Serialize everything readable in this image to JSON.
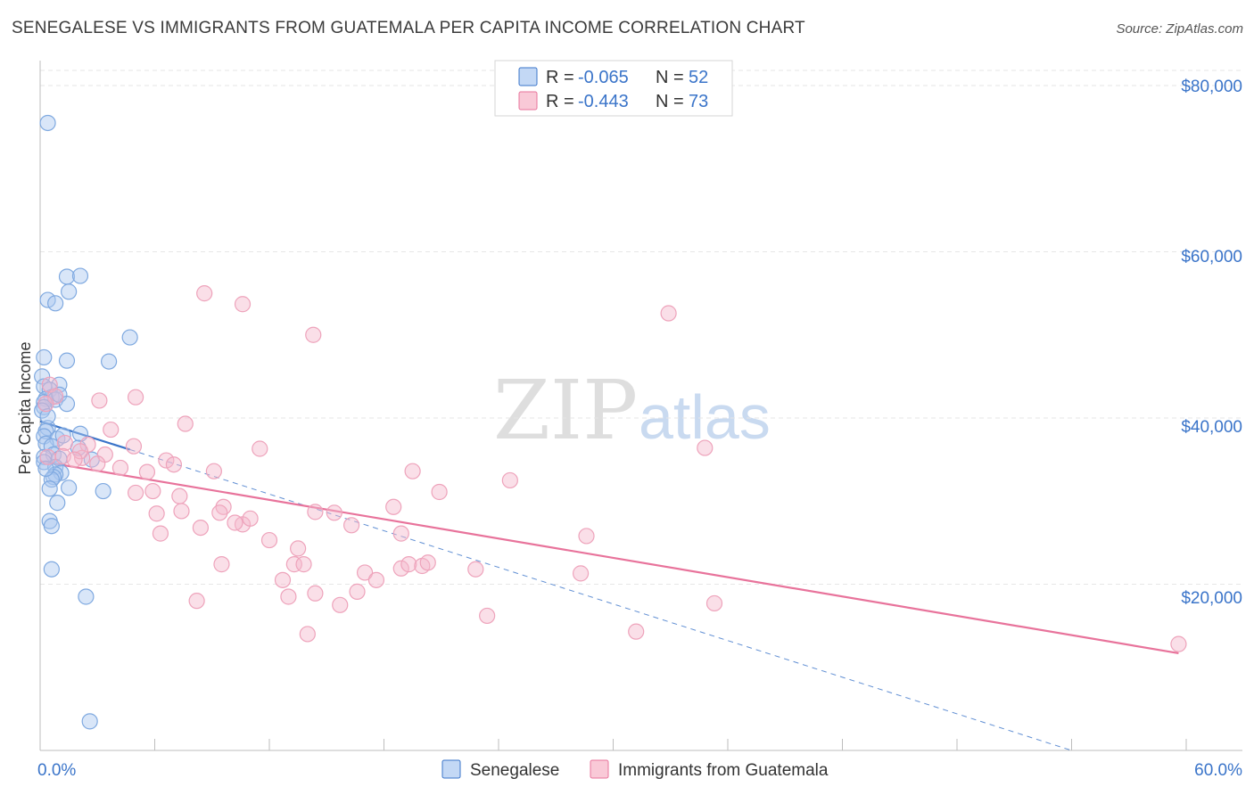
{
  "title": "SENEGALESE VS IMMIGRANTS FROM GUATEMALA PER CAPITA INCOME CORRELATION CHART",
  "source": "Source: ZipAtlas.com",
  "watermark": {
    "part1": "ZIP",
    "part2": "atlas"
  },
  "colors": {
    "blue": "#3a74c9",
    "blue_fill": "#aac8f0",
    "pink": "#e8739b",
    "pink_fill": "#f5b8cb"
  },
  "legend": {
    "rows": [
      {
        "r_label": "R =",
        "r_value": "-0.065",
        "n_label": "N =",
        "n_value": "52"
      },
      {
        "r_label": "R =",
        "r_value": "-0.443",
        "n_label": "N =",
        "n_value": "73"
      }
    ]
  },
  "bottom_legend": [
    "Senegalese",
    "Immigrants from Guatemala"
  ],
  "chart_data": {
    "type": "scatter",
    "title": "SENEGALESE VS IMMIGRANTS FROM GUATEMALA PER CAPITA INCOME CORRELATION CHART",
    "xlabel": "",
    "ylabel": "Per Capita Income",
    "xlim": [
      0,
      60
    ],
    "ylim": [
      0,
      83000
    ],
    "x_tick_labels": [
      "0.0%",
      "60.0%"
    ],
    "y_ticks": [
      20000,
      40000,
      60000,
      80000
    ],
    "y_tick_labels": [
      "$20,000",
      "$40,000",
      "$60,000",
      "$80,000"
    ],
    "series": [
      {
        "name": "Senegalese",
        "color": "#3a74c9",
        "points": [
          [
            0.4,
            75500
          ],
          [
            0.4,
            54200
          ],
          [
            0.8,
            53800
          ],
          [
            1.4,
            57000
          ],
          [
            2.1,
            57100
          ],
          [
            1.5,
            55200
          ],
          [
            4.7,
            49700
          ],
          [
            0.2,
            47300
          ],
          [
            1.4,
            46900
          ],
          [
            3.6,
            46800
          ],
          [
            0.1,
            45000
          ],
          [
            0.2,
            43800
          ],
          [
            1.0,
            44000
          ],
          [
            0.5,
            43400
          ],
          [
            0.6,
            42500
          ],
          [
            0.3,
            42300
          ],
          [
            0.8,
            42200
          ],
          [
            1.0,
            42800
          ],
          [
            0.2,
            41900
          ],
          [
            1.4,
            41700
          ],
          [
            0.2,
            41300
          ],
          [
            0.1,
            40900
          ],
          [
            0.4,
            38800
          ],
          [
            0.3,
            38400
          ],
          [
            2.1,
            38100
          ],
          [
            0.2,
            37800
          ],
          [
            0.9,
            37500
          ],
          [
            0.3,
            36900
          ],
          [
            0.6,
            36600
          ],
          [
            0.7,
            35600
          ],
          [
            0.2,
            35300
          ],
          [
            1.0,
            35100
          ],
          [
            2.7,
            35000
          ],
          [
            0.2,
            34700
          ],
          [
            0.8,
            34100
          ],
          [
            1.1,
            33400
          ],
          [
            0.8,
            33200
          ],
          [
            0.7,
            32900
          ],
          [
            0.6,
            32600
          ],
          [
            1.5,
            31600
          ],
          [
            3.3,
            31200
          ],
          [
            0.5,
            31500
          ],
          [
            0.9,
            29800
          ],
          [
            0.5,
            27600
          ],
          [
            0.6,
            27000
          ],
          [
            0.6,
            21800
          ],
          [
            2.4,
            18500
          ],
          [
            2.6,
            3500
          ],
          [
            1.2,
            37900
          ],
          [
            0.4,
            40200
          ],
          [
            2.0,
            36400
          ],
          [
            0.3,
            33900
          ]
        ],
        "trend_solid": [
          [
            0.0,
            39600
          ],
          [
            4.7,
            36200
          ]
        ],
        "trend_dashed": [
          [
            4.7,
            36200
          ],
          [
            54.0,
            0
          ]
        ]
      },
      {
        "name": "Immigrants from Guatemala",
        "color": "#e8739b",
        "points": [
          [
            0.5,
            44000
          ],
          [
            0.8,
            42600
          ],
          [
            0.3,
            41700
          ],
          [
            3.1,
            42100
          ],
          [
            5.0,
            42500
          ],
          [
            7.6,
            39300
          ],
          [
            3.7,
            38600
          ],
          [
            1.3,
            37000
          ],
          [
            2.5,
            36800
          ],
          [
            4.9,
            36600
          ],
          [
            11.5,
            36300
          ],
          [
            34.8,
            36400
          ],
          [
            0.4,
            35300
          ],
          [
            1.2,
            35400
          ],
          [
            2.2,
            35200
          ],
          [
            3.4,
            35600
          ],
          [
            6.6,
            34900
          ],
          [
            7.0,
            34400
          ],
          [
            4.2,
            34000
          ],
          [
            5.6,
            33500
          ],
          [
            9.1,
            33600
          ],
          [
            19.5,
            33600
          ],
          [
            24.6,
            32500
          ],
          [
            5.0,
            31000
          ],
          [
            5.9,
            31200
          ],
          [
            7.3,
            30600
          ],
          [
            20.9,
            31100
          ],
          [
            18.5,
            29300
          ],
          [
            9.6,
            29300
          ],
          [
            7.4,
            28800
          ],
          [
            9.4,
            28600
          ],
          [
            10.6,
            27200
          ],
          [
            11.0,
            27900
          ],
          [
            6.1,
            28500
          ],
          [
            14.4,
            28700
          ],
          [
            15.4,
            28600
          ],
          [
            16.3,
            27100
          ],
          [
            8.4,
            26800
          ],
          [
            10.2,
            27400
          ],
          [
            6.3,
            26100
          ],
          [
            18.9,
            26100
          ],
          [
            12.0,
            25300
          ],
          [
            28.6,
            25800
          ],
          [
            13.5,
            24300
          ],
          [
            9.5,
            22400
          ],
          [
            13.3,
            22400
          ],
          [
            13.8,
            22400
          ],
          [
            17.0,
            21400
          ],
          [
            18.9,
            21900
          ],
          [
            19.3,
            22400
          ],
          [
            20.0,
            22200
          ],
          [
            20.3,
            22600
          ],
          [
            22.8,
            21800
          ],
          [
            12.7,
            20500
          ],
          [
            17.6,
            20500
          ],
          [
            28.3,
            21300
          ],
          [
            14.4,
            18900
          ],
          [
            16.6,
            19100
          ],
          [
            13.0,
            18500
          ],
          [
            8.2,
            18000
          ],
          [
            15.7,
            17500
          ],
          [
            35.3,
            17700
          ],
          [
            23.4,
            16200
          ],
          [
            14.0,
            14000
          ],
          [
            31.2,
            14300
          ],
          [
            8.6,
            55000
          ],
          [
            10.6,
            53700
          ],
          [
            14.3,
            50000
          ],
          [
            32.9,
            52600
          ],
          [
            59.6,
            12800
          ],
          [
            2.1,
            36000
          ],
          [
            1.8,
            35000
          ],
          [
            3.0,
            34500
          ]
        ],
        "trend_solid": [
          [
            0.0,
            34800
          ],
          [
            59.6,
            11700
          ]
        ]
      }
    ],
    "legend_position": "top-center"
  }
}
